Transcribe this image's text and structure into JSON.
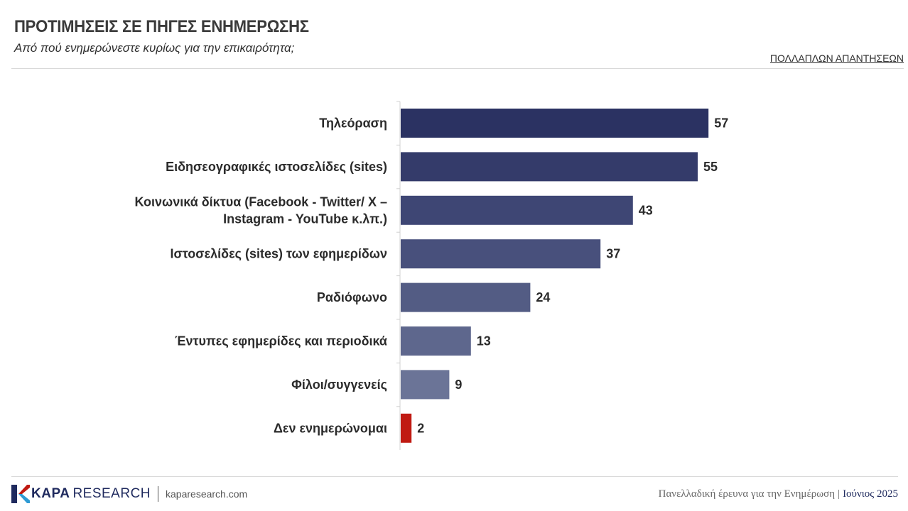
{
  "header": {
    "title": "ΠΡΟΤΙΜΗΣΕΙΣ ΣΕ ΠΗΓΕΣ ΕΝΗΜΕΡΩΣΗΣ",
    "subtitle": "Από πού ενημερώνεστε κυρίως για την επικαιρότητα;",
    "multi_answer_note": "ΠΟΛΛΑΠΛΩΝ ΑΠΑΝΤΗΣΕΩΝ"
  },
  "chart_data": {
    "type": "bar",
    "orientation": "horizontal",
    "categories": [
      [
        "Τηλεόραση"
      ],
      [
        "Ειδησεογραφικές ιστοσελίδες (sites)"
      ],
      [
        "Κοινωνικά δίκτυα (Facebook - Twitter/ X –",
        "Instagram - YouTube κ.λπ.)"
      ],
      [
        "Ιστοσελίδες (sites) των εφημερίδων"
      ],
      [
        "Ραδιόφωνο"
      ],
      [
        "Έντυπες εφημερίδες και περιοδικά"
      ],
      [
        "Φίλοι/συγγενείς"
      ],
      [
        "Δεν ενημερώνομαι"
      ]
    ],
    "values": [
      57,
      55,
      43,
      37,
      24,
      13,
      9,
      2
    ],
    "colors": [
      "#2b3262",
      "#343b6a",
      "#3e4674",
      "#48507c",
      "#535c84",
      "#5e678d",
      "#6b7497",
      "#c01a12"
    ],
    "xlim": [
      0,
      100
    ],
    "grid": false,
    "legend": "none"
  },
  "footer": {
    "brand_bold": "KAPA",
    "brand_light": "RESEARCH",
    "url": "kaparesearch.com",
    "survey": "Πανελλαδική έρευνα για την Ενημέρωση",
    "separator": "|",
    "date": "Ιούνιος 2025"
  }
}
